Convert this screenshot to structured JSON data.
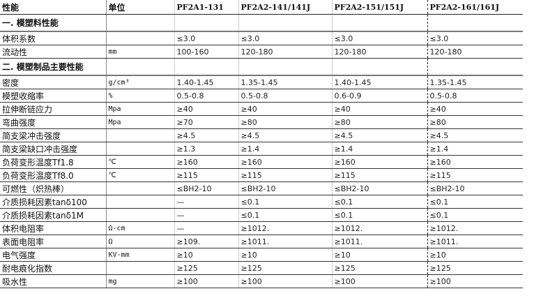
{
  "header": [
    "性能",
    "单位",
    "PF2A1-131",
    "PF2A2-141/141J",
    "PF2A2-151/151J",
    "PF2A2-161/161J"
  ],
  "rows": [
    {
      "section": true,
      "cells": [
        "一. 模塑料性能",
        "",
        "",
        "",
        "",
        ""
      ]
    },
    {
      "cells": [
        "体积系数",
        "",
        "≤3.0",
        "≤3.0",
        "≤3.0",
        "≤3.0"
      ]
    },
    {
      "cells": [
        "流动性",
        "mm",
        "100-160",
        "120-180",
        "120-180",
        "120-180"
      ]
    },
    {
      "section": true,
      "cells": [
        "二. 模塑制品主要性能",
        "",
        "",
        "",
        "",
        ""
      ]
    },
    {
      "cells": [
        "密度",
        "g/cm³",
        "1.40-1.45",
        "1.35-1.45",
        "1.40-1.45",
        "1.35-1.45"
      ]
    },
    {
      "cells": [
        "模塑收缩率",
        "%",
        "0.5-0.8",
        "0.5-0.8",
        "0.6-0.9",
        "0.5-0.8"
      ]
    },
    {
      "cells": [
        "拉伸断链应力",
        "Mpa",
        "≥40",
        "≥40",
        "≥40",
        "≥40"
      ]
    },
    {
      "cells": [
        "弯曲强度",
        "Mpa",
        "≥70",
        "≥80",
        "≥80",
        "≥80"
      ]
    },
    {
      "cells": [
        "简支梁冲击强度",
        "",
        "≥4.5",
        "≥4.5",
        "≥4.5",
        "≥4.5"
      ]
    },
    {
      "cells": [
        "简支梁缺口冲击强度",
        "",
        "≥1.3",
        "≥1.4",
        "≥1.4",
        "≥1.4"
      ]
    },
    {
      "cells": [
        "负荷变形温度Tf1.8",
        "℃",
        "≥160",
        "≥160",
        "≥160",
        "≥160"
      ]
    },
    {
      "cells": [
        "负荷变形温度Tf8.0",
        "℃",
        "≥115",
        "≥115",
        "≥115",
        "≥115"
      ]
    },
    {
      "cells": [
        "可燃性（炽热棒）",
        "",
        "≤BH2-10",
        "≤BH2-10",
        "≤BH2-10",
        "≤BH2-10"
      ]
    },
    {
      "cells": [
        "介质损耗因素tanδ100",
        "",
        "—",
        "≤0.1",
        "≤0.1",
        "≤0.1"
      ]
    },
    {
      "cells": [
        "介质损耗因素tanδ1M",
        "",
        "—",
        "≤0.1",
        "≤0.1",
        "≤0.1"
      ]
    },
    {
      "cells": [
        "体积电阻率",
        "Ω-cm",
        "—",
        "≥1012.",
        "≥1012.",
        "≥1012."
      ]
    },
    {
      "cells": [
        "表面电阻率",
        "Ω",
        "≥109.",
        "≥1011.",
        "≥1011.",
        "≥1011."
      ]
    },
    {
      "cells": [
        "电气强度",
        "KV-mm",
        "≥10",
        "≥10",
        "≥10",
        "≥10"
      ]
    },
    {
      "cells": [
        "耐电痕化指数",
        "",
        "≥125",
        "≥125",
        "≥125",
        "≥125"
      ]
    },
    {
      "cells": [
        "吸水性",
        "mg",
        "≥100",
        "≥100",
        "≥100",
        "≥100"
      ]
    }
  ]
}
